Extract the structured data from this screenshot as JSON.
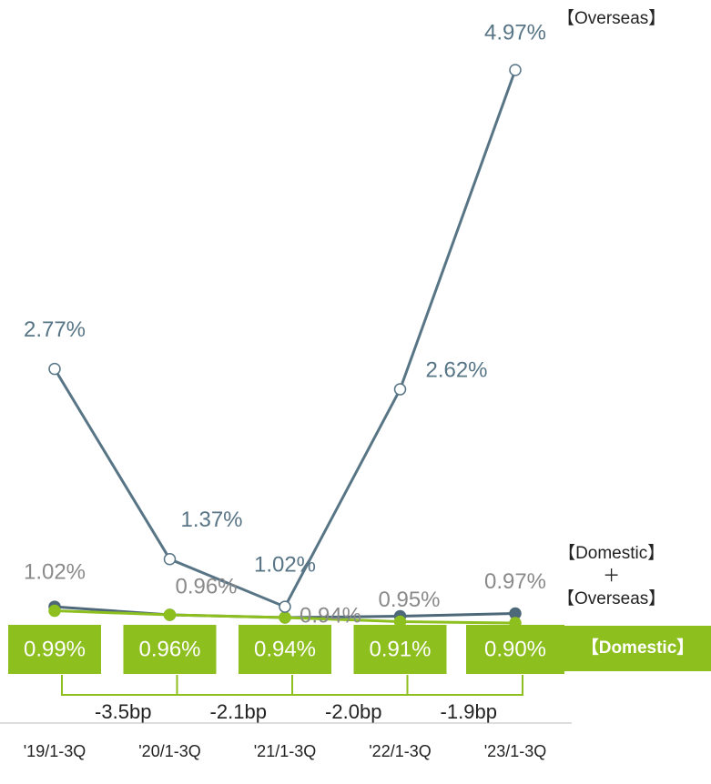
{
  "chart_data": {
    "type": "line",
    "categories": [
      "'19/1-3Q",
      "'20/1-3Q",
      "'21/1-3Q",
      "'22/1-3Q",
      "'23/1-3Q"
    ],
    "series": [
      {
        "name": "【Overseas】",
        "color": "#587586",
        "marker": "hollow",
        "values": [
          2.77,
          1.37,
          1.02,
          2.62,
          4.97
        ],
        "value_labels": [
          "2.77%",
          "1.37%",
          "1.02%",
          "2.62%",
          "4.97%"
        ]
      },
      {
        "name": "【Domestic】\n＋\n【Overseas】",
        "color": "#4d6878",
        "marker": "filled",
        "values": [
          1.02,
          0.96,
          0.94,
          0.95,
          0.97
        ],
        "value_labels": [
          "1.02%",
          "0.96%",
          "0.94%",
          "0.95%",
          "0.97%"
        ]
      },
      {
        "name": "【Domestic】",
        "color": "#8dbf1f",
        "marker": "filled",
        "values": [
          0.99,
          0.96,
          0.94,
          0.91,
          0.9
        ],
        "value_labels": [
          "0.99%",
          "0.96%",
          "0.94%",
          "0.91%",
          "0.90%"
        ]
      }
    ],
    "annotations": [
      "-3.5bp",
      "-2.1bp",
      "-2.0bp",
      "-1.9bp"
    ]
  }
}
